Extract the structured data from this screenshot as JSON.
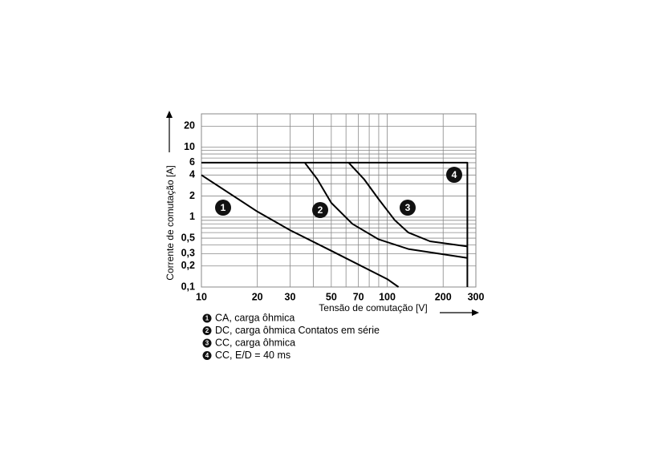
{
  "chart_data": {
    "type": "line",
    "x_label": "Tensão de comutação [V]",
    "y_label": "Corrente de comutação [A]",
    "xscale": "log",
    "yscale": "log",
    "xlim": [
      10,
      300
    ],
    "ylim": [
      0.1,
      30
    ],
    "xticks": [
      10,
      20,
      30,
      50,
      70,
      100,
      200,
      300
    ],
    "yticks": [
      {
        "value": 0.1,
        "label": "0,1"
      },
      {
        "value": 0.2,
        "label": "0,2"
      },
      {
        "value": 0.3,
        "label": "0,3"
      },
      {
        "value": 0.5,
        "label": "0,5"
      },
      1,
      2,
      4,
      6,
      10,
      20
    ],
    "xgrid": [
      10,
      20,
      30,
      40,
      50,
      60,
      70,
      80,
      90,
      100,
      200,
      300
    ],
    "ygrid": [
      0.1,
      0.2,
      0.3,
      0.4,
      0.5,
      0.6,
      0.7,
      0.8,
      0.9,
      1,
      2,
      3,
      4,
      5,
      6,
      7,
      8,
      9,
      10,
      20,
      30
    ],
    "grid": true,
    "series": [
      {
        "label": "1",
        "name": "CA, carga ôhmica",
        "color": "#000000",
        "x": [
          10,
          20,
          30,
          50,
          100,
          115
        ],
        "values": [
          4,
          1.2,
          0.65,
          0.33,
          0.13,
          0.1
        ]
      },
      {
        "label": "2",
        "name": "DC, carga ôhmica Contatos em série",
        "color": "#000000",
        "x": [
          36,
          42,
          50,
          65,
          90,
          130,
          270
        ],
        "values": [
          6,
          3.5,
          1.6,
          0.8,
          0.48,
          0.35,
          0.26
        ]
      },
      {
        "label": "3",
        "name": "CC, carga ôhmica",
        "color": "#000000",
        "x": [
          62,
          75,
          90,
          110,
          130,
          170,
          270
        ],
        "values": [
          6,
          3.5,
          1.8,
          0.9,
          0.6,
          0.45,
          0.38
        ]
      },
      {
        "label": "4",
        "name": "CC, E/D = 40 ms",
        "color": "#000000",
        "x": [
          10,
          270,
          270
        ],
        "values": [
          6,
          6,
          0.1
        ]
      }
    ]
  }
}
